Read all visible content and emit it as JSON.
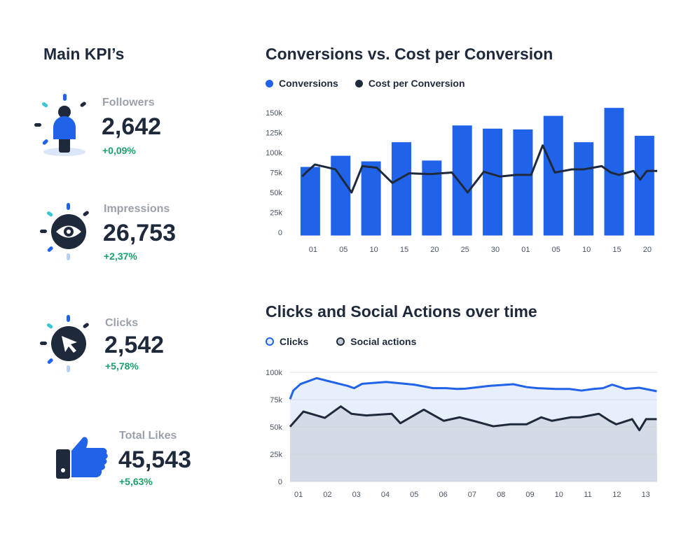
{
  "kpi_title": "Main KPI’s",
  "kpis": [
    {
      "label": "Followers",
      "value": "2,642",
      "change": "+0,09%",
      "icon": "person-icon"
    },
    {
      "label": "Impressions",
      "value": "26,753",
      "change": "+2,37%",
      "icon": "eye-icon"
    },
    {
      "label": "Clicks",
      "value": "2,542",
      "change": "+5,78%",
      "icon": "cursor-icon"
    },
    {
      "label": "Total Likes",
      "value": "45,543",
      "change": "+5,63%",
      "icon": "thumbs-up-icon"
    }
  ],
  "colors": {
    "blue": "#2063e8",
    "dark": "#1e2a3b",
    "green": "#1aa06b",
    "muted": "#9aa1ab",
    "area_blue": "#e8effc",
    "area_dark": "#d4dbe6"
  },
  "chart_data": [
    {
      "type": "bar",
      "title": "Conversions vs. Cost per Conversion",
      "legend": [
        "Conversions",
        "Cost per Conversion"
      ],
      "categories": [
        "01",
        "05",
        "10",
        "15",
        "20",
        "25",
        "30",
        "01",
        "05",
        "10",
        "15",
        "20"
      ],
      "yticks": [
        "0",
        "25k",
        "50k",
        "75k",
        "100k",
        "125k",
        "150k"
      ],
      "ylim": [
        0,
        150000
      ],
      "series": [
        {
          "name": "Conversions",
          "type": "bar",
          "values": [
            82000,
            96000,
            89000,
            113000,
            90000,
            134000,
            130000,
            129000,
            146000,
            113000,
            156000,
            121000
          ]
        },
        {
          "name": "Cost per Conversion",
          "type": "line",
          "x": [
            -0.27,
            -0.14,
            0.15,
            0.83,
            1.36,
            1.71,
            2.19,
            2.7,
            3.25,
            3.95,
            4.66,
            5.18,
            5.71,
            6.24,
            6.77,
            7.27,
            7.65,
            8.05,
            8.62,
            9.01,
            9.59,
            9.89,
            10.16,
            10.64,
            10.86,
            11.08,
            11.42
          ],
          "values": [
            70000,
            75000,
            85000,
            79000,
            50000,
            83000,
            81000,
            62000,
            74000,
            73000,
            75000,
            50000,
            76000,
            70000,
            72000,
            72000,
            109000,
            75000,
            79000,
            79000,
            83000,
            75000,
            72000,
            77000,
            66000,
            77000,
            77000
          ]
        }
      ]
    },
    {
      "type": "area",
      "title": "Clicks and Social Actions over time",
      "legend": [
        "Clicks",
        "Social actions"
      ],
      "categories": [
        "01",
        "02",
        "03",
        "04",
        "05",
        "06",
        "07",
        "08",
        "09",
        "10",
        "11",
        "12",
        "13"
      ],
      "yticks": [
        "0",
        "25k",
        "50k",
        "75k",
        "100k"
      ],
      "ylim": [
        0,
        100000
      ],
      "grid": true,
      "series": [
        {
          "name": "Clicks",
          "x": [
            -0.3,
            -0.18,
            0.07,
            0.63,
            1.04,
            1.69,
            1.92,
            2.2,
            3.03,
            4.0,
            4.65,
            5.11,
            5.48,
            5.76,
            6.59,
            7.42,
            7.88,
            8.25,
            8.9,
            9.36,
            9.78,
            10.19,
            10.52,
            10.84,
            11.3,
            11.77,
            12.38
          ],
          "values": [
            75400,
            83300,
            89300,
            94700,
            91900,
            87600,
            85500,
            89500,
            91200,
            88700,
            85500,
            85500,
            84800,
            85000,
            87600,
            89100,
            86500,
            85500,
            84800,
            84800,
            83300,
            84800,
            85500,
            88700,
            84800,
            85900,
            82700
          ]
        },
        {
          "name": "Social actions",
          "x": [
            -0.3,
            0.17,
            0.91,
            1.46,
            1.83,
            2.34,
            3.22,
            3.52,
            4.33,
            5.02,
            5.57,
            6.04,
            6.73,
            7.33,
            7.88,
            8.39,
            8.76,
            9.41,
            9.73,
            10.38,
            10.75,
            10.98,
            11.53,
            11.78,
            12.01,
            12.38
          ],
          "values": [
            50200,
            64100,
            58300,
            68800,
            62000,
            60500,
            62000,
            53400,
            65800,
            55600,
            58800,
            55600,
            50600,
            52400,
            52400,
            58800,
            55600,
            58800,
            58800,
            62000,
            55600,
            52400,
            57100,
            47000,
            57100,
            57100
          ]
        }
      ]
    }
  ]
}
